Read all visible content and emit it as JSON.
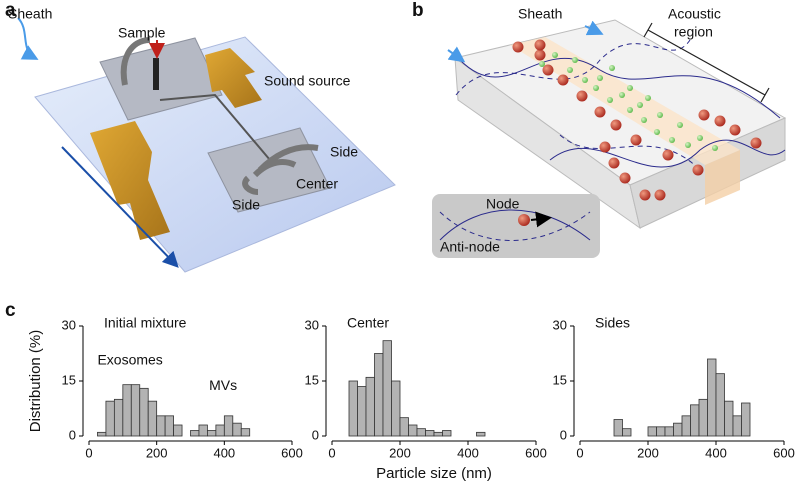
{
  "panel_labels": [
    "a",
    "b",
    "c"
  ],
  "panel_a": {
    "sheath": "Sheath",
    "sample": "Sample",
    "sound_source": "Sound source",
    "side_top": "Side",
    "center": "Center",
    "side_bottom": "Side"
  },
  "panel_b": {
    "sheath": "Sheath",
    "acoustic_region": [
      "Acoustic",
      "region"
    ],
    "node": "Node",
    "anti_node": "Anti-node"
  },
  "chart_data": [
    {
      "type": "histogram",
      "title": "Initial mixture",
      "ylabel": "Distribution (%)",
      "annotations": [
        "Exosomes",
        "MVs"
      ],
      "bins": [
        25,
        50,
        75,
        100,
        125,
        150,
        175,
        200,
        225,
        250,
        275,
        300,
        325,
        350,
        375,
        400,
        425,
        450,
        475,
        500
      ],
      "values": [
        1,
        9.5,
        10,
        14,
        14,
        13,
        9.5,
        5.5,
        5.5,
        3,
        0,
        1.5,
        3,
        1.5,
        3,
        5.5,
        3.5,
        2,
        0
      ],
      "color": "#b3b3b3",
      "xlim": [
        0,
        600
      ],
      "xticks": [
        0,
        200,
        400,
        600
      ],
      "ylim": [
        0,
        30
      ],
      "yticks": [
        0,
        15,
        30
      ]
    },
    {
      "type": "histogram",
      "title": "Center",
      "xlabel": "Particle size (nm)",
      "bins": [
        50,
        75,
        100,
        125,
        150,
        175,
        200,
        225,
        250,
        275,
        300,
        325,
        350,
        375,
        400,
        425,
        450
      ],
      "values": [
        15,
        13.5,
        16,
        22.5,
        26,
        15,
        5,
        3,
        2,
        1.5,
        1,
        1.5,
        0,
        0,
        0,
        1
      ],
      "color": "#b3b3b3",
      "xlim": [
        0,
        600
      ],
      "xticks": [
        0,
        200,
        400,
        600
      ],
      "ylim": [
        0,
        30
      ],
      "yticks": [
        0,
        15,
        30
      ]
    },
    {
      "type": "histogram",
      "title": "Sides",
      "bins": [
        100,
        125,
        150,
        175,
        200,
        225,
        250,
        275,
        300,
        325,
        350,
        375,
        400,
        425,
        450,
        475,
        500
      ],
      "values": [
        4.5,
        2,
        0,
        0,
        2.5,
        2.5,
        2.5,
        3.5,
        5.5,
        8.5,
        10,
        21,
        17,
        9.5,
        5.5,
        9
      ],
      "color": "#b3b3b3",
      "xlim": [
        0,
        600
      ],
      "xticks": [
        0,
        200,
        400,
        600
      ],
      "ylim": [
        0,
        30
      ],
      "yticks": [
        0,
        15,
        30
      ]
    }
  ]
}
